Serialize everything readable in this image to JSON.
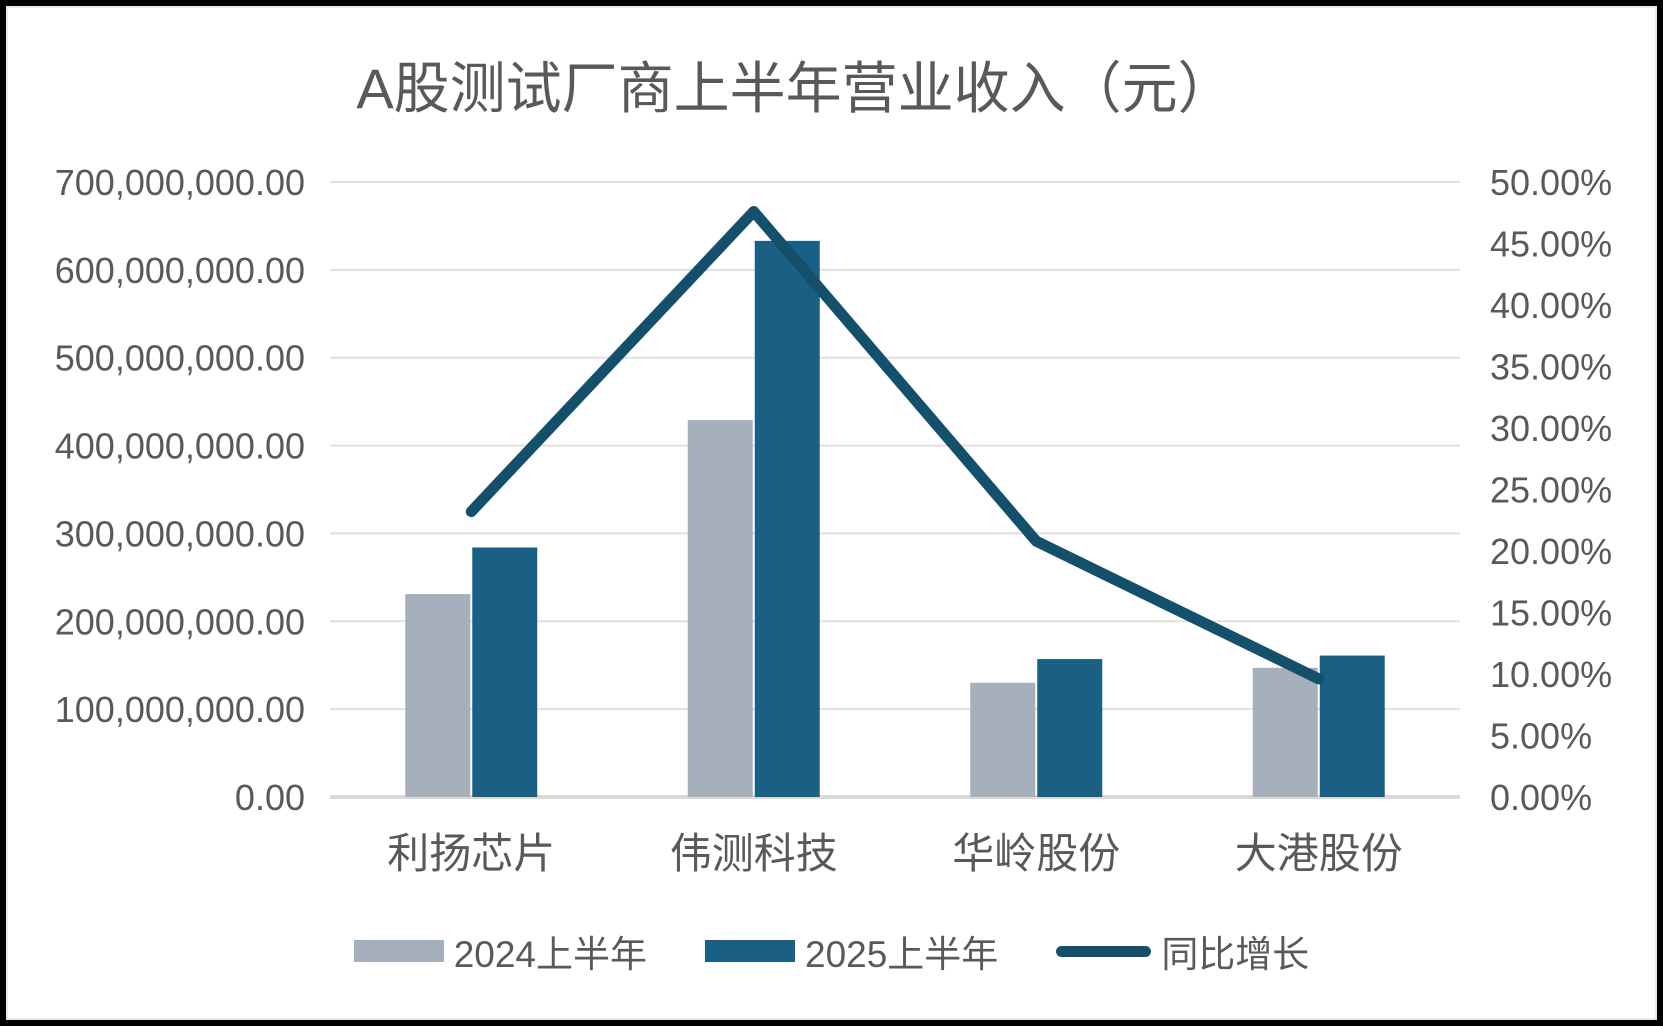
{
  "chart_data": {
    "type": "bar+line-combo",
    "title": "A股测试厂商上半年营业收入（元）",
    "categories": [
      "利扬芯片",
      "伟测科技",
      "华岭股份",
      "大港股份"
    ],
    "series": [
      {
        "name": "2024上半年",
        "type": "bar",
        "axis": "left",
        "color": "#a6b0bc",
        "values": [
          231000000,
          429000000,
          130000000,
          147000000
        ]
      },
      {
        "name": "2025上半年",
        "type": "bar",
        "axis": "left",
        "color": "#1a6084",
        "values": [
          284000000,
          633000000,
          157000000,
          161000000
        ]
      },
      {
        "name": "同比增长",
        "type": "line",
        "axis": "right",
        "color": "#14506b",
        "values_pct": [
          23.2,
          47.6,
          20.8,
          9.6
        ]
      }
    ],
    "left_axis": {
      "min": 0,
      "max": 700000000,
      "step": 100000000,
      "tick_labels": [
        "0.00",
        "100,000,000.00",
        "200,000,000.00",
        "300,000,000.00",
        "400,000,000.00",
        "500,000,000.00",
        "600,000,000.00",
        "700,000,000.00"
      ]
    },
    "right_axis": {
      "min_pct": 0,
      "max_pct": 50,
      "step_pct": 5,
      "tick_labels": [
        "0.00%",
        "5.00%",
        "10.00%",
        "15.00%",
        "20.00%",
        "25.00%",
        "30.00%",
        "35.00%",
        "40.00%",
        "45.00%",
        "50.00%"
      ]
    },
    "grid": true,
    "legend_position": "bottom",
    "colors": {
      "text": "#595959",
      "gridline": "#e0e0e0",
      "axis_line": "#d9d9d9",
      "background": "#ffffff",
      "frame_border": "#000000"
    }
  }
}
